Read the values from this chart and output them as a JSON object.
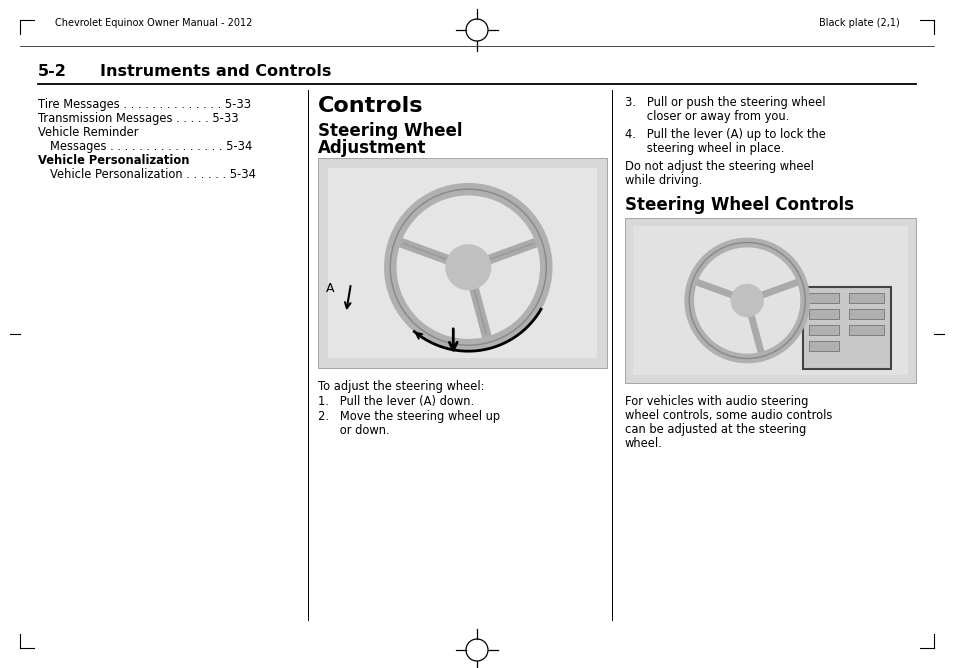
{
  "page_bg": "#ffffff",
  "header_left": "Chevrolet Equinox Owner Manual - 2012",
  "header_right": "Black plate (2,1)",
  "col1_lines": [
    {
      "text": "Tire Messages . . . . . . . . . . . . . . 5-33",
      "bold": false,
      "indent": 0
    },
    {
      "text": "Transmission Messages . . . . . 5-33",
      "bold": false,
      "indent": 0
    },
    {
      "text": "Vehicle Reminder",
      "bold": false,
      "indent": 0
    },
    {
      "text": "Messages . . . . . . . . . . . . . . . . 5-34",
      "bold": false,
      "indent": 12
    },
    {
      "text": "Vehicle Personalization",
      "bold": true,
      "indent": 0
    },
    {
      "text": "Vehicle Personalization . . . . . . 5-34",
      "bold": false,
      "indent": 12
    }
  ],
  "col2_heading": "Controls",
  "col2_subheading1": "Steering Wheel",
  "col2_subheading2": "Adjustment",
  "col2_caption": "To adjust the steering wheel:",
  "col2_step1": "1.   Pull the lever (A) down.",
  "col2_step2a": "2.   Move the steering wheel up",
  "col2_step2b": "      or down.",
  "col3_step3a": "3.   Pull or push the steering wheel",
  "col3_step3b": "      closer or away from you.",
  "col3_step4a": "4.   Pull the lever (A) up to lock the",
  "col3_step4b": "      steering wheel in place.",
  "col3_note1": "Do not adjust the steering wheel",
  "col3_note2": "while driving.",
  "col3_subheading": "Steering Wheel Controls",
  "col3_caption1": "For vehicles with audio steering",
  "col3_caption2": "wheel controls, some audio controls",
  "col3_caption3": "can be adjusted at the steering",
  "col3_caption4": "wheel."
}
